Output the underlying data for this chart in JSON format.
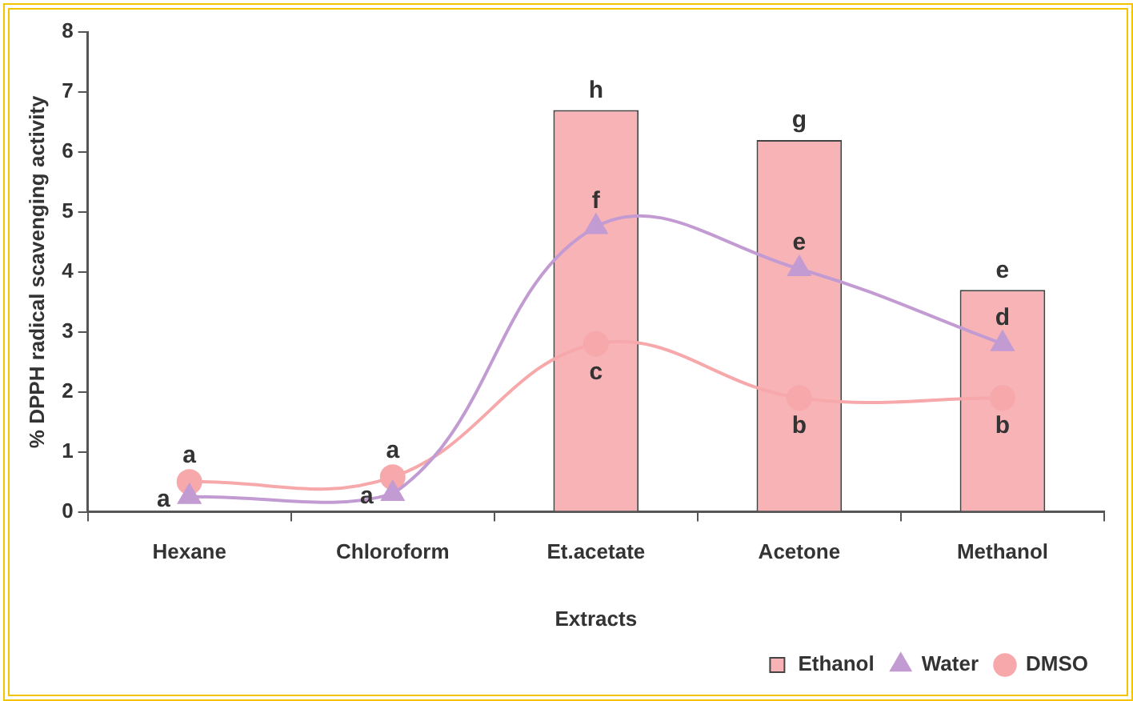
{
  "chart_data": {
    "type": "bar",
    "xlabel": "Extracts",
    "ylabel": "% DPPH radical scavenging activity",
    "categories": [
      "Hexane",
      "Chloroform",
      "Et.acetate",
      "Acetone",
      "Methanol"
    ],
    "series": [
      {
        "name": "Ethanol",
        "color": "#f7b3b6",
        "values": [
          null,
          null,
          6.7,
          6.2,
          3.7
        ]
      },
      {
        "name": "Water",
        "type": "line",
        "color": "#c39bd3",
        "marker": "triangle",
        "values": [
          0.25,
          0.3,
          4.75,
          4.05,
          2.8
        ]
      },
      {
        "name": "DMSO",
        "type": "line",
        "color": "#f7a8ab",
        "marker": "circle",
        "values": [
          0.5,
          0.58,
          2.8,
          1.9,
          1.9
        ]
      }
    ],
    "ylim": [
      0,
      8
    ],
    "yticks": [
      0,
      1,
      2,
      3,
      4,
      5,
      6,
      7,
      8
    ],
    "grid": false,
    "legend": "bottom right",
    "annotations": [
      {
        "text": "h",
        "x": "Et.acetate",
        "y": 6.7
      },
      {
        "text": "g",
        "x": "Acetone",
        "y": 6.2
      },
      {
        "text": "e",
        "x": "Methanol",
        "y": 3.7
      },
      {
        "text": "a",
        "x": "Hexane",
        "y": 0.25
      },
      {
        "text": "a",
        "x": "Chloroform",
        "y": 0.3
      },
      {
        "text": "f",
        "x": "Et.acetate",
        "y": 4.75
      },
      {
        "text": "e",
        "x": "Acetone",
        "y": 4.05
      },
      {
        "text": "d",
        "x": "Methanol",
        "y": 2.8
      },
      {
        "text": "a",
        "x": "Hexane",
        "y": 0.5
      },
      {
        "text": "a",
        "x": "Chloroform",
        "y": 0.58
      },
      {
        "text": "c",
        "x": "Et.acetate",
        "y": 2.8
      },
      {
        "text": "b",
        "x": "Acetone",
        "y": 1.9
      },
      {
        "text": "b",
        "x": "Methanol",
        "y": 1.9
      }
    ]
  }
}
